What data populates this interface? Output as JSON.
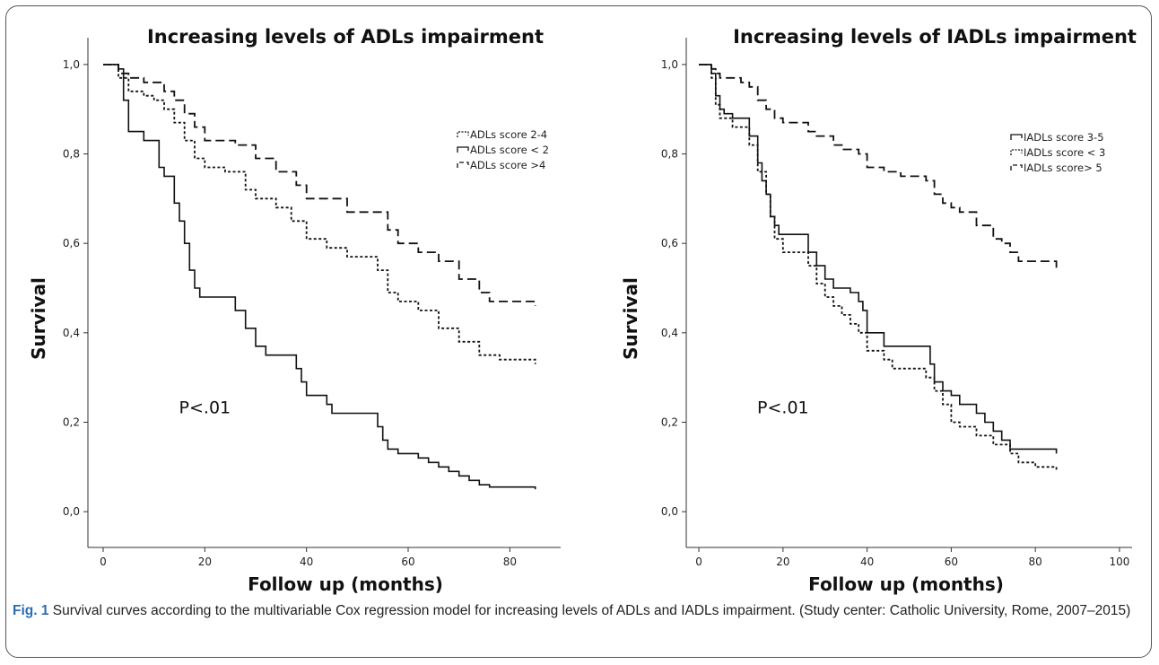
{
  "chart_data": [
    {
      "type": "line",
      "step": true,
      "title": "Increasing levels of ADLs impairment",
      "xlabel": "Follow up (months)",
      "ylabel": "Survival",
      "xlim": [
        -3,
        90
      ],
      "ylim": [
        -0.08,
        1.08
      ],
      "xticks": [
        0,
        20,
        40,
        60,
        80
      ],
      "xtick_labels": [
        "0",
        "20",
        "40",
        "60",
        "80"
      ],
      "yticks": [
        0,
        0.2,
        0.4,
        0.6,
        0.8,
        1.0
      ],
      "ytick_labels": [
        "0,0",
        "0,2",
        "0,4",
        "0,6",
        "0,8",
        "1,0"
      ],
      "annotation": {
        "text": "P<.01",
        "x": 20,
        "y": 0.22
      },
      "legend_position": "top-right",
      "series": [
        {
          "name": "ADLs score 2-4",
          "dash": "dotted",
          "x": [
            0,
            3,
            5,
            8,
            10,
            12,
            14,
            16,
            18,
            20,
            24,
            28,
            30,
            34,
            37,
            40,
            44,
            48,
            52,
            54,
            56,
            58,
            62,
            66,
            70,
            74,
            78,
            82,
            85
          ],
          "y": [
            1.0,
            0.97,
            0.94,
            0.93,
            0.92,
            0.9,
            0.87,
            0.83,
            0.79,
            0.77,
            0.76,
            0.72,
            0.7,
            0.68,
            0.65,
            0.61,
            0.59,
            0.57,
            0.57,
            0.54,
            0.49,
            0.47,
            0.45,
            0.41,
            0.38,
            0.35,
            0.34,
            0.34,
            0.33
          ]
        },
        {
          "name": "ADLs score < 2",
          "dash": "solid",
          "x": [
            0,
            3,
            4,
            5,
            8,
            11,
            12,
            14,
            15,
            16,
            17,
            18,
            19,
            20,
            26,
            28,
            30,
            32,
            34,
            38,
            39,
            40,
            44,
            45,
            48,
            54,
            55,
            56,
            58,
            60,
            62,
            64,
            66,
            68,
            70,
            72,
            74,
            76,
            80,
            85
          ],
          "y": [
            1.0,
            0.99,
            0.92,
            0.85,
            0.83,
            0.77,
            0.75,
            0.69,
            0.65,
            0.6,
            0.54,
            0.5,
            0.48,
            0.48,
            0.45,
            0.41,
            0.37,
            0.35,
            0.35,
            0.32,
            0.29,
            0.26,
            0.24,
            0.22,
            0.22,
            0.19,
            0.16,
            0.14,
            0.13,
            0.13,
            0.12,
            0.11,
            0.1,
            0.09,
            0.08,
            0.07,
            0.06,
            0.055,
            0.055,
            0.05
          ]
        },
        {
          "name": "ADLs score >4",
          "dash": "dashed",
          "x": [
            0,
            3,
            5,
            8,
            12,
            14,
            16,
            18,
            20,
            24,
            26,
            30,
            34,
            38,
            40,
            44,
            48,
            54,
            56,
            58,
            62,
            66,
            70,
            74,
            76,
            80,
            85
          ],
          "y": [
            1.0,
            0.98,
            0.97,
            0.96,
            0.94,
            0.92,
            0.89,
            0.86,
            0.83,
            0.83,
            0.82,
            0.79,
            0.76,
            0.73,
            0.7,
            0.7,
            0.67,
            0.67,
            0.63,
            0.6,
            0.58,
            0.56,
            0.52,
            0.49,
            0.47,
            0.47,
            0.46
          ]
        }
      ]
    },
    {
      "type": "line",
      "step": true,
      "title": "Increasing levels of IADLs impairment",
      "xlabel": "Follow up (months)",
      "ylabel": "Survival",
      "xlim": [
        -3,
        103
      ],
      "ylim": [
        -0.08,
        1.08
      ],
      "xticks": [
        0,
        20,
        40,
        60,
        80,
        100
      ],
      "xtick_labels": [
        "0",
        "20",
        "40",
        "60",
        "80",
        "100"
      ],
      "yticks": [
        0,
        0.2,
        0.4,
        0.6,
        0.8,
        1.0
      ],
      "ytick_labels": [
        "0,0",
        "0,2",
        "0,4",
        "0,6",
        "0,8",
        "1,0"
      ],
      "annotation": {
        "text": "P<.01",
        "x": 20,
        "y": 0.22
      },
      "legend_position": "top-right",
      "series": [
        {
          "name": "IADLs score 3-5",
          "dash": "solid",
          "x": [
            0,
            3,
            4,
            5,
            6,
            8,
            12,
            14,
            15,
            16,
            17,
            18,
            19,
            20,
            26,
            28,
            30,
            32,
            34,
            36,
            38,
            39,
            40,
            44,
            54,
            55,
            56,
            58,
            60,
            62,
            66,
            68,
            70,
            72,
            74,
            76,
            85
          ],
          "y": [
            1.0,
            0.98,
            0.93,
            0.9,
            0.89,
            0.88,
            0.84,
            0.78,
            0.74,
            0.71,
            0.66,
            0.64,
            0.62,
            0.62,
            0.58,
            0.55,
            0.52,
            0.5,
            0.5,
            0.49,
            0.47,
            0.45,
            0.4,
            0.37,
            0.37,
            0.33,
            0.29,
            0.27,
            0.26,
            0.24,
            0.22,
            0.2,
            0.18,
            0.16,
            0.14,
            0.14,
            0.13
          ]
        },
        {
          "name": "IADLs score < 3",
          "dash": "dotted",
          "x": [
            0,
            3,
            4,
            5,
            8,
            12,
            14,
            16,
            17,
            18,
            20,
            26,
            28,
            30,
            32,
            34,
            36,
            38,
            40,
            44,
            46,
            50,
            54,
            56,
            58,
            60,
            62,
            66,
            70,
            74,
            76,
            80,
            85
          ],
          "y": [
            1.0,
            0.97,
            0.91,
            0.88,
            0.86,
            0.82,
            0.76,
            0.71,
            0.66,
            0.61,
            0.58,
            0.55,
            0.51,
            0.48,
            0.46,
            0.44,
            0.42,
            0.4,
            0.36,
            0.34,
            0.32,
            0.32,
            0.3,
            0.27,
            0.24,
            0.2,
            0.19,
            0.17,
            0.15,
            0.13,
            0.11,
            0.1,
            0.09
          ]
        },
        {
          "name": "IADLs score> 5",
          "dash": "dashed",
          "x": [
            0,
            3,
            4,
            5,
            10,
            12,
            14,
            16,
            18,
            20,
            26,
            28,
            32,
            34,
            38,
            40,
            44,
            48,
            54,
            56,
            58,
            60,
            62,
            66,
            70,
            72,
            74,
            76,
            80,
            85
          ],
          "y": [
            1.0,
            0.99,
            0.98,
            0.97,
            0.96,
            0.95,
            0.92,
            0.9,
            0.88,
            0.87,
            0.85,
            0.84,
            0.82,
            0.81,
            0.8,
            0.77,
            0.76,
            0.75,
            0.74,
            0.71,
            0.69,
            0.68,
            0.67,
            0.64,
            0.61,
            0.6,
            0.58,
            0.56,
            0.56,
            0.54
          ]
        }
      ]
    }
  ],
  "caption": {
    "label": "Fig. 1",
    "text": " Survival curves according to the multivariable Cox regression model for increasing levels of ADLs and IADLs impairment. (Study center: Catholic University, Rome, 2007–2015)"
  }
}
